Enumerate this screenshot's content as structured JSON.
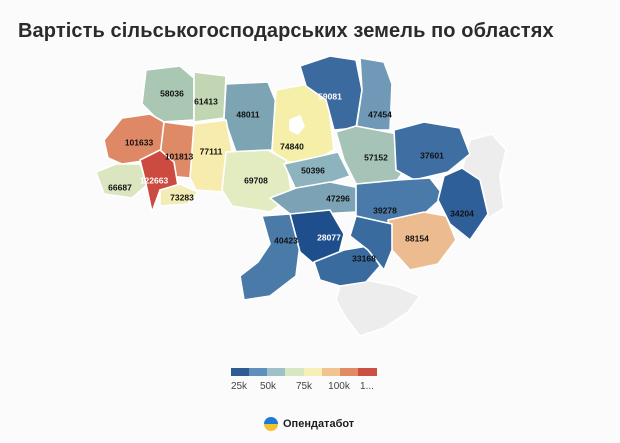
{
  "title": "Вартість сільськогосподарських земель по областях",
  "legend": {
    "ticks": [
      "25k",
      "50k",
      "75k",
      "100k",
      "1..."
    ],
    "colors": [
      "#2d5b92",
      "#5f8fbc",
      "#9fbfc9",
      "#d9e6c2",
      "#f6f0b6",
      "#f1c48f",
      "#e08b62",
      "#cc4f44"
    ]
  },
  "brand": {
    "name": "Опендатабот",
    "icon": "ukraine-flag-icon"
  },
  "regions": [
    {
      "name": "volyn",
      "value": "58036",
      "color": "#a9c7b2"
    },
    {
      "name": "rivne",
      "value": "61413",
      "color": "#c2d6b3"
    },
    {
      "name": "zhytomyr",
      "value": "48011",
      "color": "#7da4b2"
    },
    {
      "name": "kyiv",
      "value": "74840",
      "color": "#f5efa9"
    },
    {
      "name": "kyiv-city",
      "value": "",
      "color": "#ffffff"
    },
    {
      "name": "chernihiv",
      "value": "59081",
      "color": "#3a6a9e"
    },
    {
      "name": "sumy",
      "value": "47454",
      "color": "#6f99b6"
    },
    {
      "name": "lviv",
      "value": "101633",
      "color": "#df8866"
    },
    {
      "name": "ternopil",
      "value": "101813",
      "color": "#de8a67"
    },
    {
      "name": "khmelnytskyi",
      "value": "77111",
      "color": "#f7ecad"
    },
    {
      "name": "zakarpattia",
      "value": "66687",
      "color": "#dbe6c0"
    },
    {
      "name": "ivano-frankivsk",
      "value": "122663",
      "color": "#cc4a40"
    },
    {
      "name": "chernivtsi",
      "value": "73283",
      "color": "#f3ecb4"
    },
    {
      "name": "vinnytsia",
      "value": "69708",
      "color": "#e3ebc1"
    },
    {
      "name": "cherkasy",
      "value": "50396",
      "color": "#8db3be"
    },
    {
      "name": "poltava",
      "value": "57152",
      "color": "#a5c4b7"
    },
    {
      "name": "kharkiv",
      "value": "37601",
      "color": "#3f6fa2"
    },
    {
      "name": "kirovohrad",
      "value": "47296",
      "color": "#7ba3b5"
    },
    {
      "name": "dnipropetrovsk",
      "value": "39278",
      "color": "#4a7aa9"
    },
    {
      "name": "luhansk",
      "value": "34204",
      "color": "#2f5f99"
    },
    {
      "name": "donetsk",
      "value": "88154",
      "color": "#edbb90"
    },
    {
      "name": "odesa",
      "value": "40423",
      "color": "#4a7ba8"
    },
    {
      "name": "mykolaiv",
      "value": "28077",
      "color": "#1e4f8c"
    },
    {
      "name": "kherson",
      "value": "33168",
      "color": "#3a6b9f"
    },
    {
      "name": "zaporizhzhia",
      "value": "",
      "color": "#3a6b9f"
    },
    {
      "name": "occupied-east",
      "value": "",
      "color": "#ededed"
    },
    {
      "name": "crimea",
      "value": "",
      "color": "#ededed"
    }
  ]
}
